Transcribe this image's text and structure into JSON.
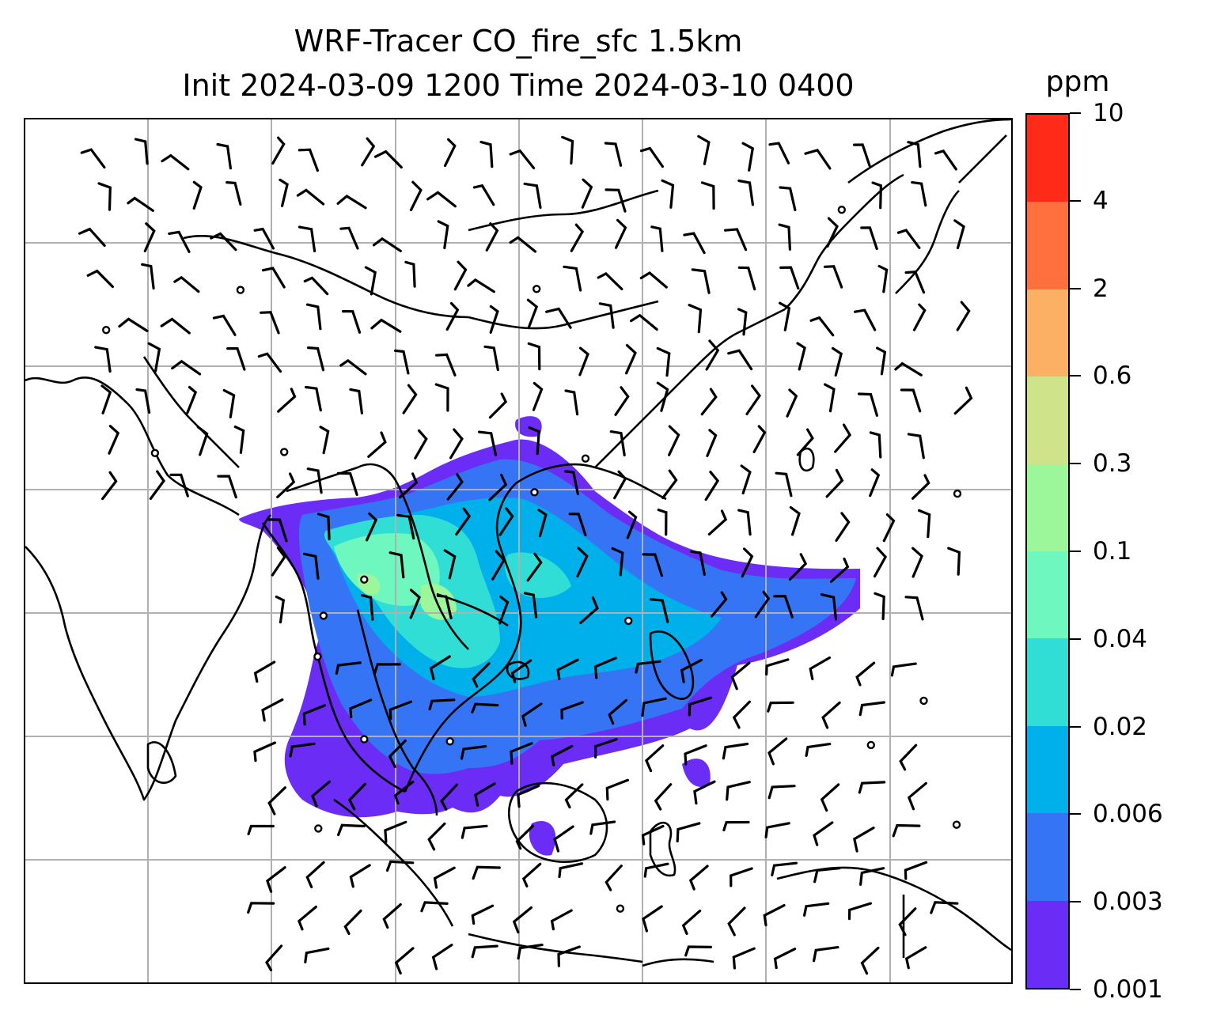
{
  "title": {
    "line1": "WRF-Tracer CO_fire_sfc 1.5km",
    "line2": "Init 2024-03-09 1200 Time 2024-03-10 0400"
  },
  "colorbar": {
    "unit": "ppm",
    "levels": [
      "0.001",
      "0.003",
      "0.006",
      "0.02",
      "0.04",
      "0.1",
      "0.3",
      "0.6",
      "2",
      "4",
      "10"
    ],
    "colors": [
      "#6b2cf5",
      "#3575f5",
      "#00b0ea",
      "#30ded6",
      "#6ef8c0",
      "#9bf79a",
      "#cfe38b",
      "#fcb064",
      "#ff703e",
      "#ff2b18"
    ]
  },
  "map": {
    "gridlines": "on",
    "wind_barbs": "on",
    "calm_circles": "on"
  },
  "chart_data": {
    "type": "heatmap",
    "variable": "CO_fire_sfc",
    "unit": "ppm",
    "init": "2024-03-09 1200",
    "valid": "2024-03-10 0400",
    "legend_placement": "right",
    "plume": {
      "levels": [
        "0.001",
        "0.003",
        "0.006",
        "0.02",
        "0.04",
        "0.1",
        "0.3",
        "0.6",
        "2",
        "4",
        "10"
      ]
    }
  }
}
